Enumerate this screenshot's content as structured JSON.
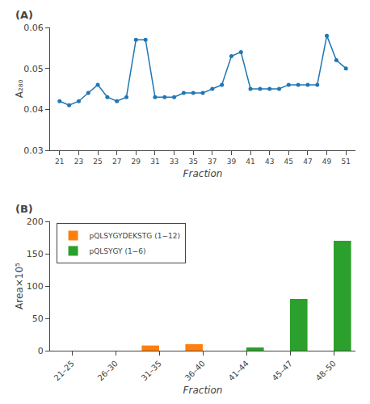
{
  "chart_data": [
    {
      "type": "line",
      "title": "(A)",
      "x": [
        21,
        22,
        23,
        24,
        25,
        26,
        27,
        28,
        29,
        30,
        31,
        32,
        33,
        34,
        35,
        36,
        37,
        38,
        39,
        40,
        41,
        42,
        43,
        44,
        45,
        46,
        47,
        48,
        49,
        50,
        51
      ],
      "values": [
        0.042,
        0.041,
        0.042,
        0.044,
        0.046,
        0.043,
        0.042,
        0.043,
        0.057,
        0.057,
        0.043,
        0.043,
        0.043,
        0.044,
        0.044,
        0.044,
        0.045,
        0.046,
        0.053,
        0.054,
        0.045,
        0.045,
        0.045,
        0.045,
        0.046,
        0.046,
        0.046,
        0.046,
        0.058,
        0.052,
        0.05
      ],
      "xlabel": "Fraction",
      "ylabel": "A₂₈₀",
      "xlim": [
        20,
        52
      ],
      "xticks": [
        21,
        23,
        25,
        27,
        29,
        31,
        33,
        35,
        37,
        39,
        41,
        43,
        45,
        47,
        49,
        51
      ],
      "ylim": [
        0.03,
        0.06
      ],
      "yticks": [
        0.03,
        0.04,
        0.05,
        0.06
      ],
      "marker": "circle",
      "line_style": "solid",
      "grid": false
    },
    {
      "type": "bar",
      "title": "(B)",
      "categories": [
        "21–25",
        "26–30",
        "31–35",
        "36–40",
        "41–44",
        "45–47",
        "48–50"
      ],
      "series": [
        {
          "name": "pQLSYGYDEKSTG (1−12)",
          "values": [
            0,
            0,
            8,
            10,
            0,
            0,
            0
          ]
        },
        {
          "name": "pQLSYGY (1−6)",
          "values": [
            0,
            0,
            0,
            0,
            5,
            80,
            170
          ]
        }
      ],
      "xlabel": "Fraction",
      "ylabel": "Area×10⁵",
      "ylim": [
        0,
        200
      ],
      "yticks": [
        0,
        50,
        100,
        150,
        200
      ],
      "legend": "upper left",
      "grid": false
    }
  ]
}
